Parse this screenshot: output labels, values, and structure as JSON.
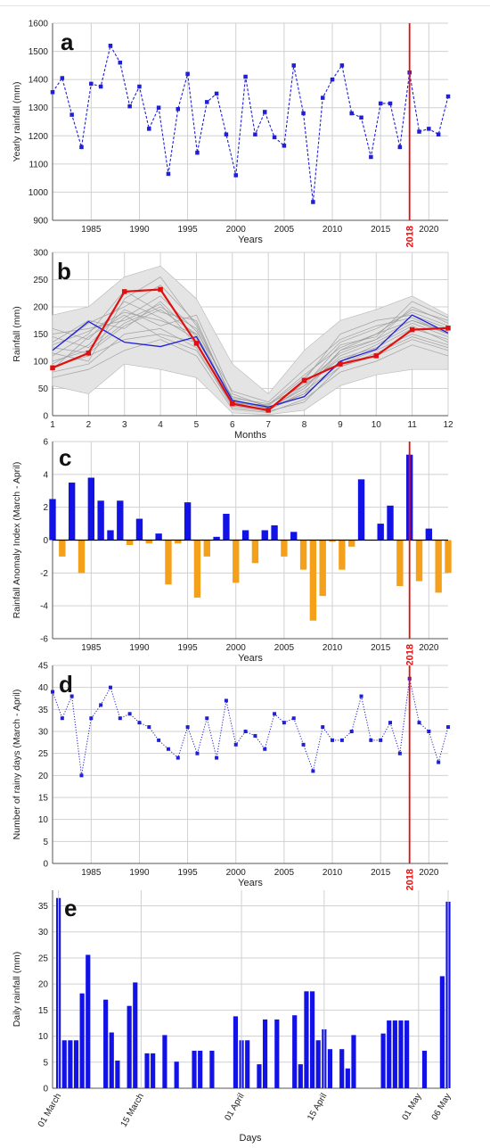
{
  "chart_data": [
    {
      "panel": "a",
      "type": "line",
      "ylabel": "Yearly rainfall (mm)",
      "xlabel": "Years",
      "xlim": [
        1981,
        2022
      ],
      "ylim": [
        900,
        1600
      ],
      "x_ticks": [
        1985,
        1990,
        1995,
        2000,
        2005,
        2010,
        2015,
        2020
      ],
      "y_ticks": [
        900,
        1000,
        1100,
        1200,
        1300,
        1400,
        1500,
        1600
      ],
      "grid": true,
      "highlight_year": 2018,
      "highlight_label": "2018",
      "series": [
        {
          "color": "#1f1fd6",
          "x": [
            1981,
            1982,
            1983,
            1984,
            1985,
            1986,
            1987,
            1988,
            1989,
            1990,
            1991,
            1992,
            1993,
            1994,
            1995,
            1996,
            1997,
            1998,
            1999,
            2000,
            2001,
            2002,
            2003,
            2004,
            2005,
            2006,
            2007,
            2008,
            2009,
            2010,
            2011,
            2012,
            2013,
            2014,
            2015,
            2016,
            2017,
            2018,
            2019,
            2020,
            2021,
            2022
          ],
          "y": [
            1355,
            1405,
            1275,
            1160,
            1385,
            1375,
            1520,
            1460,
            1305,
            1375,
            1225,
            1300,
            1065,
            1295,
            1420,
            1140,
            1320,
            1350,
            1205,
            1060,
            1410,
            1205,
            1285,
            1195,
            1165,
            1450,
            1280,
            965,
            1335,
            1400,
            1450,
            1280,
            1265,
            1125,
            1315,
            1315,
            1160,
            1425,
            1215,
            1225,
            1205,
            1340
          ]
        }
      ]
    },
    {
      "panel": "b",
      "type": "line",
      "ylabel": "Rainfall (mm)",
      "xlabel": "Months",
      "xlim": [
        1,
        12
      ],
      "ylim": [
        0,
        300
      ],
      "x_ticks": [
        1,
        2,
        3,
        4,
        5,
        6,
        7,
        8,
        9,
        10,
        11,
        12
      ],
      "y_ticks": [
        0,
        50,
        100,
        150,
        200,
        250,
        300
      ],
      "grid": true,
      "envelope": {
        "x": [
          1,
          2,
          3,
          4,
          5,
          6,
          7,
          8,
          9,
          10,
          11,
          12
        ],
        "upper": [
          185,
          200,
          255,
          275,
          215,
          95,
          40,
          120,
          175,
          195,
          220,
          185
        ],
        "lower": [
          55,
          40,
          95,
          85,
          70,
          5,
          2,
          10,
          55,
          75,
          85,
          85
        ]
      },
      "background_lines": [
        [
          130,
          155,
          190,
          175,
          150,
          25,
          15,
          40,
          120,
          150,
          175,
          155
        ],
        [
          100,
          120,
          170,
          200,
          160,
          20,
          10,
          55,
          105,
          125,
          160,
          140
        ],
        [
          160,
          140,
          210,
          180,
          140,
          35,
          18,
          70,
          135,
          160,
          190,
          165
        ],
        [
          80,
          95,
          150,
          160,
          125,
          15,
          8,
          25,
          90,
          110,
          140,
          120
        ],
        [
          120,
          170,
          200,
          240,
          170,
          30,
          12,
          60,
          115,
          140,
          200,
          170
        ],
        [
          90,
          110,
          140,
          150,
          135,
          18,
          10,
          45,
          95,
          120,
          150,
          130
        ],
        [
          145,
          125,
          180,
          220,
          155,
          45,
          25,
          85,
          140,
          165,
          180,
          150
        ],
        [
          110,
          150,
          230,
          190,
          175,
          28,
          14,
          50,
          110,
          135,
          170,
          145
        ],
        [
          70,
          85,
          120,
          140,
          110,
          12,
          6,
          30,
          80,
          100,
          130,
          110
        ],
        [
          135,
          175,
          160,
          210,
          145,
          22,
          20,
          75,
          125,
          150,
          195,
          175
        ],
        [
          95,
          130,
          195,
          165,
          185,
          40,
          16,
          35,
          100,
          130,
          165,
          135
        ],
        [
          150,
          160,
          175,
          205,
          130,
          25,
          9,
          65,
          150,
          175,
          185,
          160
        ],
        [
          115,
          100,
          215,
          255,
          165,
          32,
          22,
          55,
          130,
          145,
          210,
          180
        ],
        [
          85,
          145,
          185,
          145,
          120,
          20,
          11,
          40,
          90,
          115,
          145,
          125
        ],
        [
          125,
          115,
          165,
          195,
          150,
          26,
          13,
          50,
          120,
          140,
          175,
          150
        ]
      ],
      "series": [
        {
          "color": "#1f1fd6",
          "x": [
            1,
            2,
            3,
            4,
            5,
            6,
            7,
            8,
            9,
            10,
            11,
            12
          ],
          "y": [
            120,
            173,
            135,
            127,
            145,
            28,
            16,
            35,
            100,
            122,
            185,
            152
          ]
        },
        {
          "color": "#e01010",
          "x": [
            1,
            2,
            3,
            4,
            5,
            6,
            7,
            8,
            9,
            10,
            11,
            12
          ],
          "y": [
            88,
            115,
            228,
            232,
            133,
            22,
            10,
            65,
            95,
            110,
            158,
            161
          ]
        }
      ]
    },
    {
      "panel": "c",
      "type": "bar",
      "ylabel": "Rainfall Anomaly Index (March - April)",
      "xlabel": "Years",
      "xlim": [
        1981,
        2022
      ],
      "ylim": [
        -6,
        6
      ],
      "x_ticks": [
        1985,
        1990,
        1995,
        2000,
        2005,
        2010,
        2015,
        2020
      ],
      "y_ticks": [
        -6,
        -4,
        -2,
        0,
        2,
        4,
        6
      ],
      "grid": true,
      "highlight_year": 2018,
      "highlight_label": "2018",
      "positive_color": "#1212e6",
      "negative_color": "#f5a01a",
      "x": [
        1981,
        1982,
        1983,
        1984,
        1985,
        1986,
        1987,
        1988,
        1989,
        1990,
        1991,
        1992,
        1993,
        1994,
        1995,
        1996,
        1997,
        1998,
        1999,
        2000,
        2001,
        2002,
        2003,
        2004,
        2005,
        2006,
        2007,
        2008,
        2009,
        2010,
        2011,
        2012,
        2013,
        2014,
        2015,
        2016,
        2017,
        2018,
        2019,
        2020,
        2021,
        2022
      ],
      "values": [
        2.5,
        -1.0,
        3.5,
        -2.0,
        3.8,
        2.4,
        0.6,
        2.4,
        -0.3,
        1.3,
        -0.2,
        0.4,
        -2.7,
        -0.2,
        2.3,
        -3.5,
        -1.0,
        0.2,
        1.6,
        -2.6,
        0.6,
        -1.4,
        0.6,
        0.9,
        -1.0,
        0.5,
        -1.8,
        -4.9,
        -3.4,
        -0.1,
        -1.8,
        -0.4,
        3.7,
        0.0,
        1.0,
        2.1,
        -2.8,
        5.2,
        -2.5,
        0.7,
        -3.2,
        -2.0
      ]
    },
    {
      "panel": "d",
      "type": "line",
      "ylabel": "Number of rainy days (March - April)",
      "xlabel": "Years",
      "xlim": [
        1981,
        2022
      ],
      "ylim": [
        0,
        45
      ],
      "x_ticks": [
        1985,
        1990,
        1995,
        2000,
        2005,
        2010,
        2015,
        2020
      ],
      "y_ticks": [
        0,
        5,
        10,
        15,
        20,
        25,
        30,
        35,
        40,
        45
      ],
      "grid": true,
      "highlight_year": 2018,
      "highlight_label": "2018",
      "series": [
        {
          "color": "#1f1fd6",
          "x": [
            1981,
            1982,
            1983,
            1984,
            1985,
            1986,
            1987,
            1988,
            1989,
            1990,
            1991,
            1992,
            1993,
            1994,
            1995,
            1996,
            1997,
            1998,
            1999,
            2000,
            2001,
            2002,
            2003,
            2004,
            2005,
            2006,
            2007,
            2008,
            2009,
            2010,
            2011,
            2012,
            2013,
            2014,
            2015,
            2016,
            2017,
            2018,
            2019,
            2020,
            2021,
            2022
          ],
          "y": [
            39,
            33,
            38,
            20,
            33,
            36,
            40,
            33,
            34,
            32,
            31,
            28,
            26,
            24,
            31,
            25,
            33,
            24,
            37,
            27,
            30,
            29,
            26,
            34,
            32,
            33,
            27,
            21,
            31,
            28,
            28,
            30,
            38,
            28,
            28,
            32,
            25,
            42,
            32,
            30,
            23,
            31
          ]
        }
      ]
    },
    {
      "panel": "e",
      "type": "bar",
      "ylabel": "Daily rainfall (mm)",
      "xlabel": "Days",
      "xlim": [
        0,
        67
      ],
      "ylim": [
        0,
        38
      ],
      "y_ticks": [
        0,
        5,
        10,
        15,
        20,
        25,
        30,
        35
      ],
      "grid": true,
      "bar_color": "#1212e6",
      "x_tick_labels": [
        {
          "day": 1,
          "label": "01 March"
        },
        {
          "day": 15,
          "label": "15 March"
        },
        {
          "day": 32,
          "label": "01 April"
        },
        {
          "day": 46,
          "label": "15 April"
        },
        {
          "day": 62,
          "label": "01 May"
        },
        {
          "day": 67,
          "label": "06 May"
        }
      ],
      "values": [
        36.5,
        9.2,
        9.2,
        9.2,
        18.2,
        25.6,
        0,
        0,
        17.0,
        10.7,
        5.3,
        0,
        15.8,
        20.3,
        0,
        6.7,
        6.7,
        0,
        10.2,
        0,
        5.1,
        0,
        0,
        7.2,
        7.2,
        0,
        7.2,
        0,
        0,
        0,
        13.8,
        9.2,
        9.2,
        0,
        4.6,
        13.2,
        0,
        13.2,
        0,
        0,
        14.0,
        4.6,
        18.6,
        18.6,
        9.2,
        11.3,
        7.5,
        0,
        7.5,
        3.8,
        10.2,
        0,
        0,
        0,
        0,
        10.5,
        13.0,
        13.0,
        13.0,
        13.0,
        0,
        0,
        7.2,
        0,
        0,
        21.5,
        35.8
      ]
    }
  ],
  "panel_letters": [
    "a",
    "b",
    "c",
    "d",
    "e"
  ]
}
